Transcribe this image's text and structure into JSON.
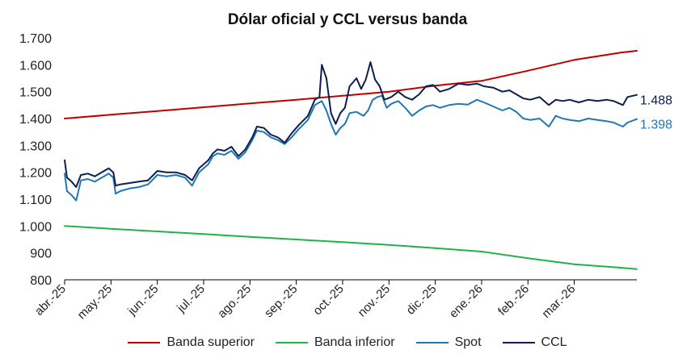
{
  "chart_data": {
    "type": "line",
    "title": "Dólar oficial y CCL versus banda",
    "xlabel": "",
    "ylabel": "",
    "ylim": [
      800,
      1700
    ],
    "y_ticks": [
      "1.700",
      "1.600",
      "1.500",
      "1.400",
      "1.300",
      "1.200",
      "1.100",
      "1.000",
      "900",
      "800"
    ],
    "x_labels": [
      "abr.-25",
      "may.-25",
      "jun.-25",
      "jul.-25",
      "ago.-25",
      "sep.-25",
      "oct.-25",
      "nov.-25",
      "dic.-25",
      "ene.-26",
      "feb.-26",
      "mar.-26"
    ],
    "x_range_months": [
      0,
      12.35
    ],
    "grid": false,
    "legend_position": "bottom",
    "end_labels": [
      {
        "series": "CCL",
        "text": "1.488",
        "value": 1488
      },
      {
        "series": "Spot",
        "text": "1.398",
        "value": 1398
      }
    ],
    "series": [
      {
        "name": "Banda superior",
        "color": "#c00000",
        "points": [
          [
            0,
            1400
          ],
          [
            1,
            1414
          ],
          [
            2,
            1428
          ],
          [
            3,
            1442
          ],
          [
            4,
            1456
          ],
          [
            5,
            1470
          ],
          [
            6,
            1485
          ],
          [
            7,
            1500
          ],
          [
            8,
            1522
          ],
          [
            9,
            1540
          ],
          [
            10,
            1578
          ],
          [
            11,
            1618
          ],
          [
            12,
            1645
          ],
          [
            12.35,
            1652
          ]
        ]
      },
      {
        "name": "Banda inferior",
        "color": "#22b14c",
        "points": [
          [
            0,
            1000
          ],
          [
            1,
            990
          ],
          [
            2,
            980
          ],
          [
            3,
            970
          ],
          [
            4,
            960
          ],
          [
            5,
            950
          ],
          [
            6,
            940
          ],
          [
            7,
            930
          ],
          [
            8,
            918
          ],
          [
            9,
            905
          ],
          [
            10,
            880
          ],
          [
            11,
            858
          ],
          [
            12,
            845
          ],
          [
            12.35,
            840
          ]
        ]
      },
      {
        "name": "Spot",
        "color": "#1f77b4",
        "points": [
          [
            0,
            1195
          ],
          [
            0.05,
            1130
          ],
          [
            0.15,
            1115
          ],
          [
            0.25,
            1095
          ],
          [
            0.35,
            1170
          ],
          [
            0.5,
            1175
          ],
          [
            0.65,
            1165
          ],
          [
            0.8,
            1180
          ],
          [
            0.95,
            1195
          ],
          [
            1.05,
            1180
          ],
          [
            1.1,
            1120
          ],
          [
            1.2,
            1130
          ],
          [
            1.4,
            1140
          ],
          [
            1.6,
            1145
          ],
          [
            1.8,
            1155
          ],
          [
            2.0,
            1190
          ],
          [
            2.2,
            1185
          ],
          [
            2.4,
            1190
          ],
          [
            2.6,
            1180
          ],
          [
            2.75,
            1150
          ],
          [
            2.9,
            1200
          ],
          [
            3.1,
            1230
          ],
          [
            3.2,
            1260
          ],
          [
            3.3,
            1270
          ],
          [
            3.45,
            1265
          ],
          [
            3.6,
            1280
          ],
          [
            3.75,
            1250
          ],
          [
            3.9,
            1275
          ],
          [
            4.05,
            1320
          ],
          [
            4.15,
            1355
          ],
          [
            4.3,
            1350
          ],
          [
            4.45,
            1330
          ],
          [
            4.6,
            1320
          ],
          [
            4.75,
            1305
          ],
          [
            4.9,
            1330
          ],
          [
            5.05,
            1360
          ],
          [
            5.25,
            1395
          ],
          [
            5.4,
            1450
          ],
          [
            5.55,
            1465
          ],
          [
            5.65,
            1430
          ],
          [
            5.75,
            1380
          ],
          [
            5.85,
            1340
          ],
          [
            5.95,
            1365
          ],
          [
            6.05,
            1380
          ],
          [
            6.15,
            1420
          ],
          [
            6.3,
            1425
          ],
          [
            6.45,
            1410
          ],
          [
            6.55,
            1430
          ],
          [
            6.65,
            1470
          ],
          [
            6.75,
            1480
          ],
          [
            6.85,
            1485
          ],
          [
            6.95,
            1440
          ],
          [
            7.05,
            1455
          ],
          [
            7.2,
            1465
          ],
          [
            7.35,
            1440
          ],
          [
            7.5,
            1410
          ],
          [
            7.65,
            1430
          ],
          [
            7.8,
            1445
          ],
          [
            7.95,
            1450
          ],
          [
            8.1,
            1440
          ],
          [
            8.3,
            1450
          ],
          [
            8.5,
            1455
          ],
          [
            8.7,
            1452
          ],
          [
            8.9,
            1470
          ],
          [
            9.05,
            1460
          ],
          [
            9.25,
            1445
          ],
          [
            9.45,
            1430
          ],
          [
            9.6,
            1440
          ],
          [
            9.75,
            1425
          ],
          [
            9.9,
            1400
          ],
          [
            10.05,
            1395
          ],
          [
            10.25,
            1400
          ],
          [
            10.45,
            1370
          ],
          [
            10.6,
            1410
          ],
          [
            10.75,
            1400
          ],
          [
            10.9,
            1395
          ],
          [
            11.1,
            1390
          ],
          [
            11.3,
            1400
          ],
          [
            11.5,
            1395
          ],
          [
            11.7,
            1390
          ],
          [
            11.85,
            1385
          ],
          [
            12.05,
            1370
          ],
          [
            12.15,
            1385
          ],
          [
            12.35,
            1398
          ]
        ]
      },
      {
        "name": "CCL",
        "color": "#0c1f4f",
        "points": [
          [
            0,
            1245
          ],
          [
            0.05,
            1180
          ],
          [
            0.15,
            1165
          ],
          [
            0.25,
            1145
          ],
          [
            0.35,
            1190
          ],
          [
            0.5,
            1195
          ],
          [
            0.65,
            1185
          ],
          [
            0.8,
            1200
          ],
          [
            0.95,
            1215
          ],
          [
            1.05,
            1200
          ],
          [
            1.1,
            1150
          ],
          [
            1.2,
            1155
          ],
          [
            1.4,
            1160
          ],
          [
            1.6,
            1165
          ],
          [
            1.8,
            1170
          ],
          [
            2.0,
            1205
          ],
          [
            2.2,
            1200
          ],
          [
            2.4,
            1200
          ],
          [
            2.6,
            1190
          ],
          [
            2.75,
            1170
          ],
          [
            2.9,
            1215
          ],
          [
            3.1,
            1245
          ],
          [
            3.2,
            1270
          ],
          [
            3.3,
            1285
          ],
          [
            3.45,
            1280
          ],
          [
            3.6,
            1295
          ],
          [
            3.75,
            1260
          ],
          [
            3.9,
            1285
          ],
          [
            4.05,
            1330
          ],
          [
            4.15,
            1370
          ],
          [
            4.3,
            1365
          ],
          [
            4.45,
            1340
          ],
          [
            4.6,
            1330
          ],
          [
            4.75,
            1310
          ],
          [
            4.9,
            1345
          ],
          [
            5.05,
            1375
          ],
          [
            5.25,
            1410
          ],
          [
            5.4,
            1470
          ],
          [
            5.5,
            1480
          ],
          [
            5.55,
            1600
          ],
          [
            5.65,
            1550
          ],
          [
            5.75,
            1420
          ],
          [
            5.85,
            1380
          ],
          [
            5.95,
            1420
          ],
          [
            6.05,
            1440
          ],
          [
            6.15,
            1520
          ],
          [
            6.3,
            1550
          ],
          [
            6.4,
            1510
          ],
          [
            6.5,
            1545
          ],
          [
            6.6,
            1610
          ],
          [
            6.7,
            1545
          ],
          [
            6.8,
            1520
          ],
          [
            6.9,
            1470
          ],
          [
            7.05,
            1480
          ],
          [
            7.2,
            1500
          ],
          [
            7.35,
            1480
          ],
          [
            7.5,
            1470
          ],
          [
            7.65,
            1490
          ],
          [
            7.8,
            1520
          ],
          [
            7.95,
            1525
          ],
          [
            8.1,
            1500
          ],
          [
            8.3,
            1510
          ],
          [
            8.5,
            1530
          ],
          [
            8.7,
            1525
          ],
          [
            8.9,
            1530
          ],
          [
            9.05,
            1520
          ],
          [
            9.25,
            1515
          ],
          [
            9.45,
            1500
          ],
          [
            9.6,
            1505
          ],
          [
            9.75,
            1490
          ],
          [
            9.9,
            1475
          ],
          [
            10.05,
            1470
          ],
          [
            10.25,
            1480
          ],
          [
            10.45,
            1450
          ],
          [
            10.6,
            1470
          ],
          [
            10.75,
            1465
          ],
          [
            10.9,
            1470
          ],
          [
            11.1,
            1460
          ],
          [
            11.3,
            1470
          ],
          [
            11.5,
            1465
          ],
          [
            11.7,
            1470
          ],
          [
            11.85,
            1465
          ],
          [
            12.05,
            1450
          ],
          [
            12.15,
            1480
          ],
          [
            12.35,
            1488
          ]
        ]
      }
    ]
  }
}
